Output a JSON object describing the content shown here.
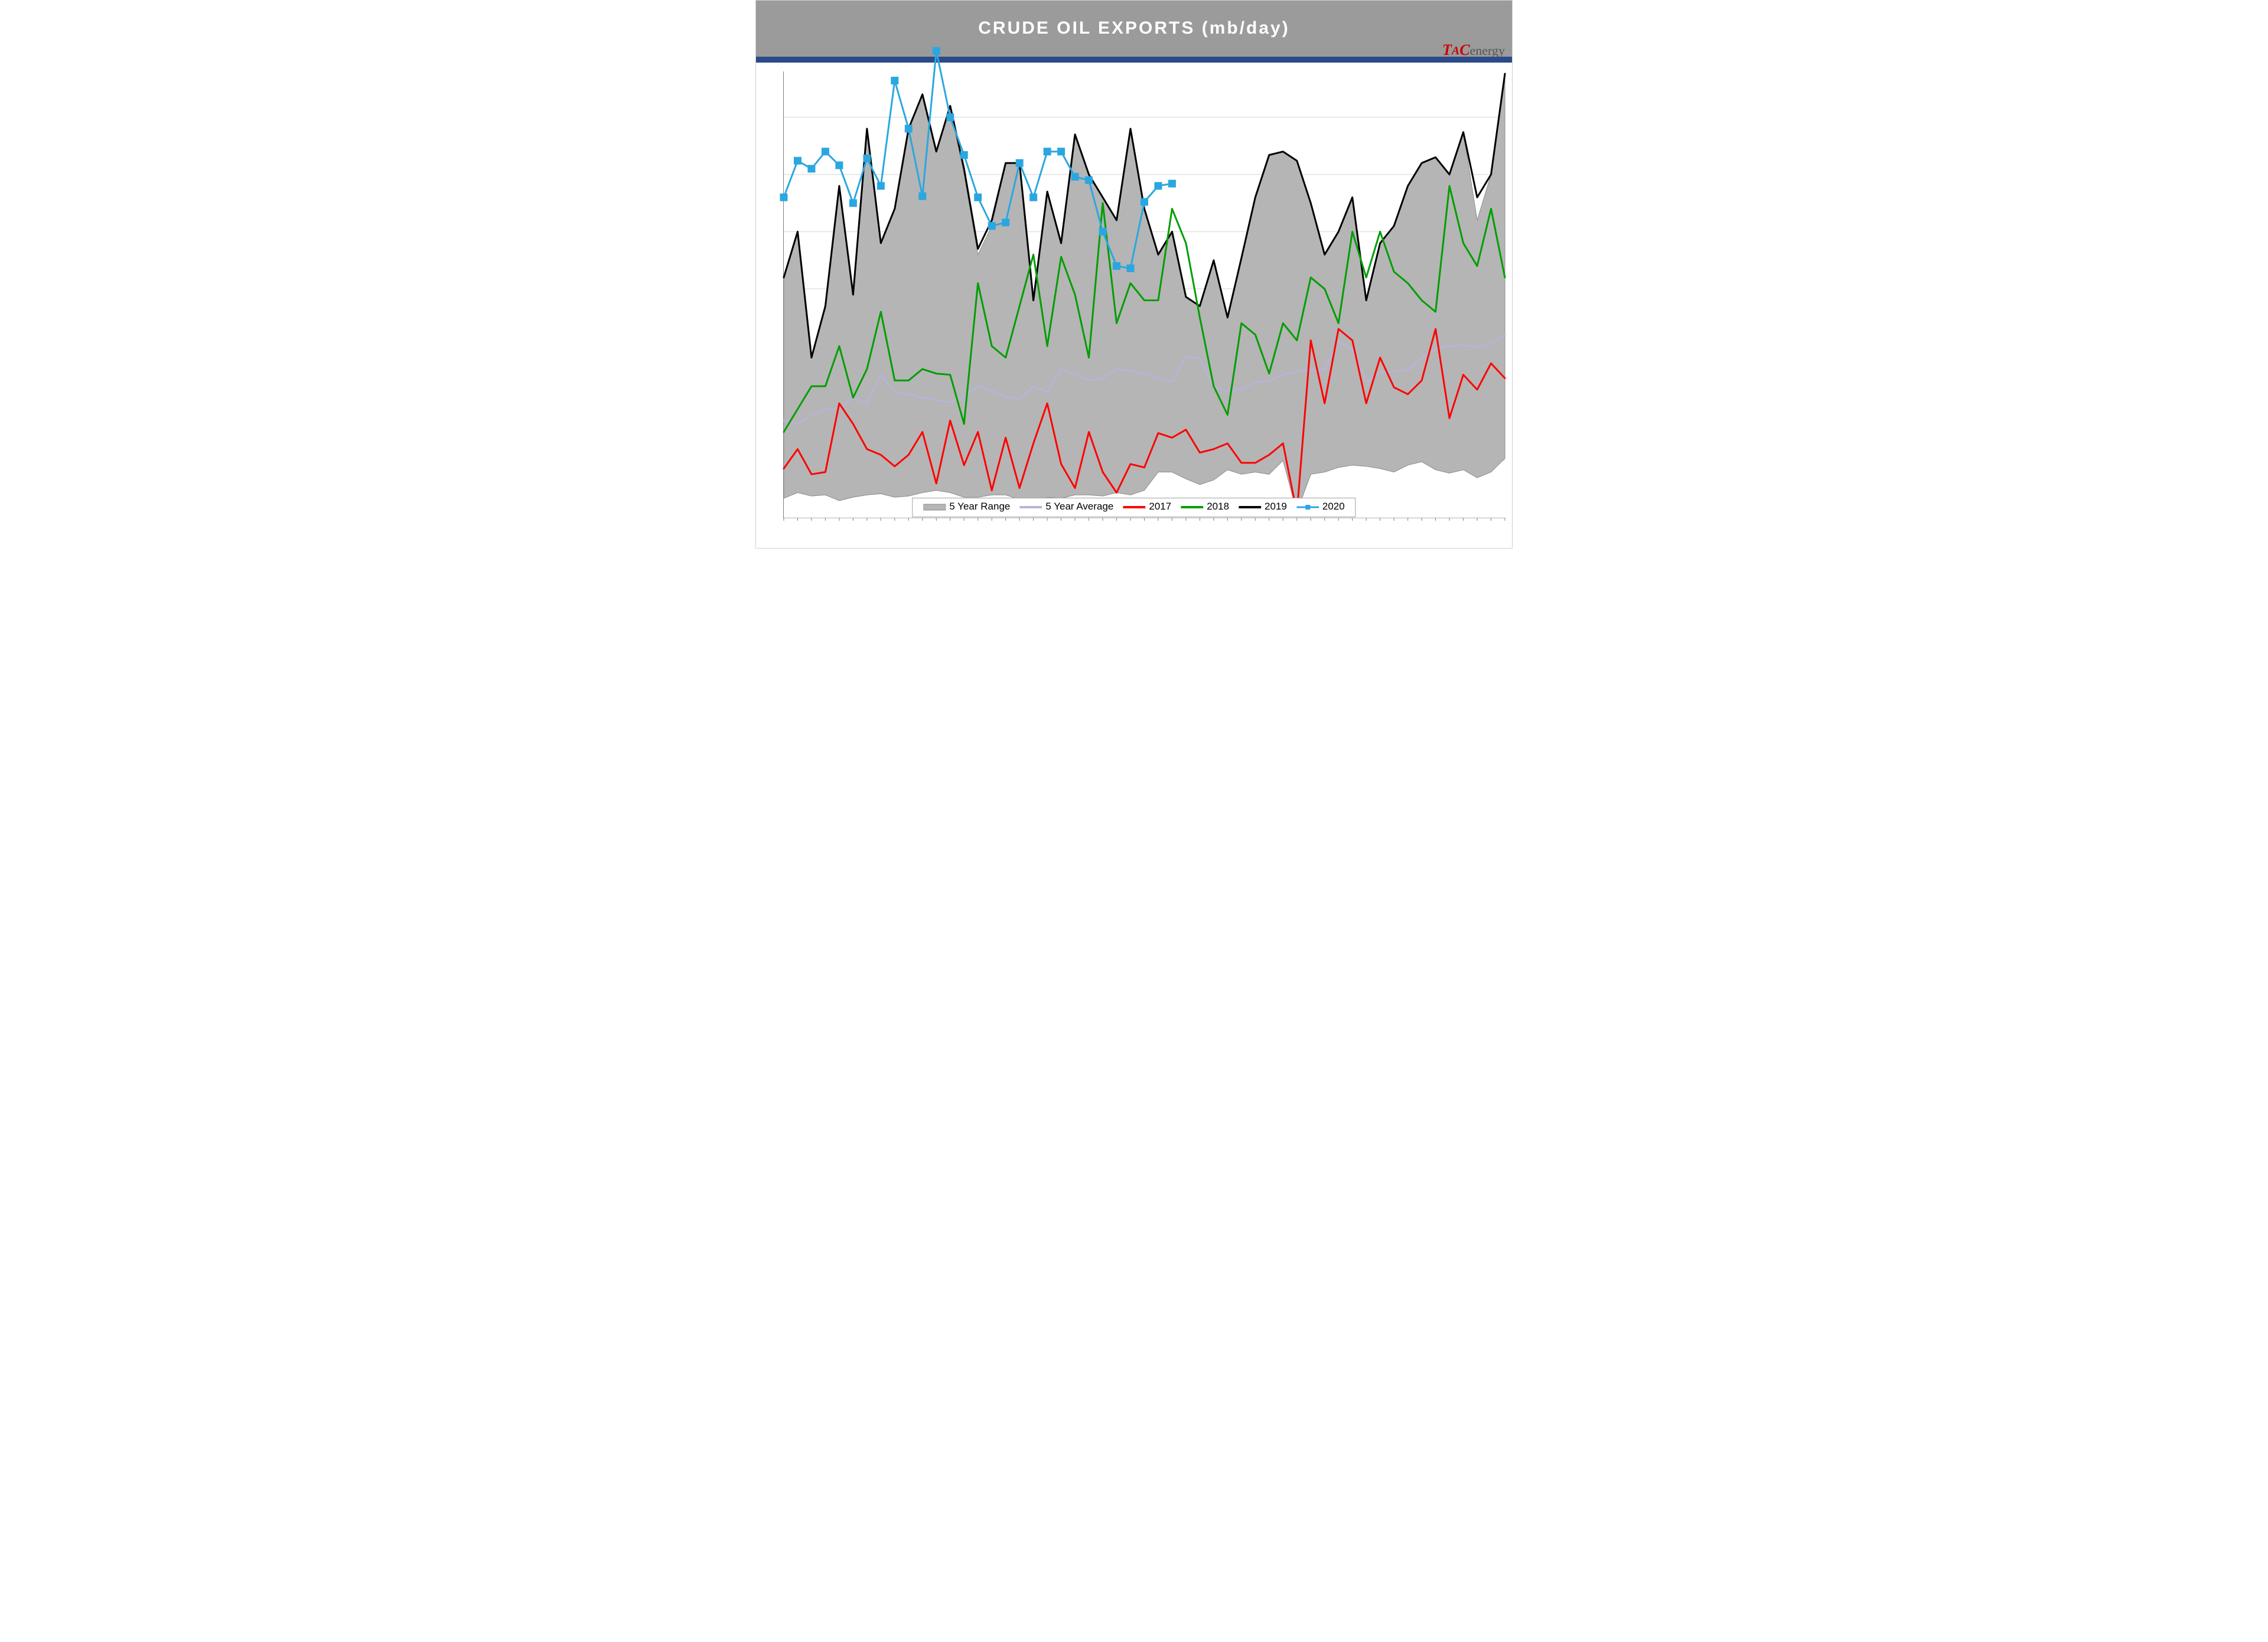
{
  "title": "CRUDE OIL EXPORTS (mb/day)",
  "logo": {
    "tac": "TAC",
    "suffix": "energy"
  },
  "chart": {
    "type": "line",
    "n_points": 53,
    "ylim": [
      300,
      4200
    ],
    "ytick_step": 500,
    "xlim": [
      1,
      53
    ],
    "background_color": "#ffffff",
    "grid_color": "#e0e0e0",
    "grid_line_width": 1.5,
    "axis_color": "#808080",
    "line_width": 3,
    "series": {
      "range_hi": {
        "label": "5 Year Range",
        "type": "area",
        "fill_color": "#b5b5b5",
        "stroke_color": "#8c8c8c",
        "values": [
          2400,
          2800,
          1700,
          2150,
          3200,
          2250,
          3700,
          2700,
          3000,
          3700,
          4000,
          3500,
          3900,
          3300,
          2600,
          2850,
          3400,
          3400,
          2200,
          3150,
          2700,
          3650,
          3300,
          3100,
          2900,
          3700,
          3000,
          2600,
          2800,
          2230,
          2150,
          2550,
          2050,
          2570,
          3100,
          3470,
          3500,
          3420,
          3050,
          2600,
          2800,
          3100,
          2200,
          2700,
          2850,
          3200,
          3400,
          3450,
          3300,
          3670,
          2900,
          3300,
          4180
        ]
      },
      "range_lo": {
        "values": [
          470,
          520,
          490,
          500,
          450,
          480,
          500,
          510,
          480,
          490,
          520,
          540,
          520,
          480,
          480,
          500,
          500,
          460,
          420,
          480,
          470,
          500,
          500,
          490,
          520,
          500,
          540,
          700,
          700,
          640,
          590,
          630,
          720,
          680,
          700,
          680,
          800,
          350,
          680,
          700,
          740,
          760,
          750,
          730,
          700,
          760,
          790,
          720,
          690,
          720,
          650,
          700,
          820
        ]
      },
      "avg": {
        "label": "5 Year Average",
        "color": "#b7b4d6",
        "values": [
          1150,
          1120,
          1200,
          1250,
          1250,
          1350,
          1300,
          1550,
          1400,
          1380,
          1350,
          1330,
          1310,
          1360,
          1450,
          1410,
          1360,
          1330,
          1450,
          1400,
          1600,
          1550,
          1500,
          1520,
          1600,
          1580,
          1560,
          1520,
          1490,
          1710,
          1690,
          1450,
          1400,
          1430,
          1480,
          1500,
          1550,
          1580,
          1590,
          1600,
          1840,
          1770,
          1490,
          1570,
          1580,
          1590,
          1700,
          1780,
          1800,
          1810,
          1790,
          1820,
          1900
        ]
      },
      "y2017": {
        "label": "2017",
        "color": "#ff0000",
        "values": [
          730,
          900,
          680,
          700,
          1300,
          1120,
          900,
          850,
          750,
          850,
          1050,
          600,
          1150,
          760,
          1050,
          540,
          1000,
          560,
          950,
          1300,
          770,
          560,
          1050,
          700,
          520,
          770,
          740,
          1040,
          1000,
          1070,
          870,
          900,
          950,
          780,
          780,
          850,
          950,
          340,
          1850,
          1300,
          1950,
          1850,
          1300,
          1700,
          1440,
          1380,
          1500,
          1950,
          1170,
          1550,
          1420,
          1650,
          1520
        ]
      },
      "y2018": {
        "label": "2018",
        "color": "#009e00",
        "values": [
          1050,
          1250,
          1450,
          1450,
          1800,
          1350,
          1600,
          2100,
          1500,
          1500,
          1600,
          1560,
          1550,
          1120,
          2350,
          1800,
          1700,
          2150,
          2600,
          1800,
          2580,
          2250,
          1700,
          3050,
          2000,
          2350,
          2200,
          2200,
          3000,
          2700,
          2050,
          1450,
          1200,
          2000,
          1900,
          1560,
          2000,
          1850,
          2400,
          2300,
          2000,
          2800,
          2400,
          2800,
          2450,
          2350,
          2200,
          2100,
          3200,
          2700,
          2500,
          3000,
          2400
        ]
      },
      "y2019": {
        "label": "2019",
        "color": "#000000",
        "values": [
          2400,
          2800,
          1700,
          2150,
          3200,
          2250,
          3700,
          2700,
          3000,
          3700,
          4000,
          3500,
          3900,
          3350,
          2650,
          2900,
          3400,
          3400,
          2200,
          3150,
          2700,
          3650,
          3300,
          3100,
          2900,
          3700,
          3000,
          2600,
          2800,
          2230,
          2150,
          2550,
          2050,
          2570,
          3100,
          3470,
          3500,
          3420,
          3050,
          2600,
          2800,
          3100,
          2200,
          2700,
          2850,
          3200,
          3400,
          3450,
          3300,
          3670,
          3100,
          3300,
          4180
        ]
      },
      "y2020": {
        "label": "2020",
        "color": "#2aa7e0",
        "marker": "square",
        "marker_size": 6,
        "values": [
          3100,
          3420,
          3350,
          3500,
          3380,
          3050,
          3440,
          3200,
          4120,
          3700,
          3110,
          4380,
          3800,
          3470,
          3100,
          2850,
          2880,
          3400,
          3100,
          3500,
          3500,
          3280,
          3250,
          2800,
          2500,
          2480,
          3060,
          3200,
          3220
        ]
      }
    },
    "legend": {
      "order": [
        "range_hi",
        "avg",
        "y2017",
        "y2018",
        "y2019",
        "y2020"
      ],
      "position": "bottom-center",
      "fontsize": 17,
      "bg": "#ffffff",
      "border": "#a0a0a0"
    }
  }
}
